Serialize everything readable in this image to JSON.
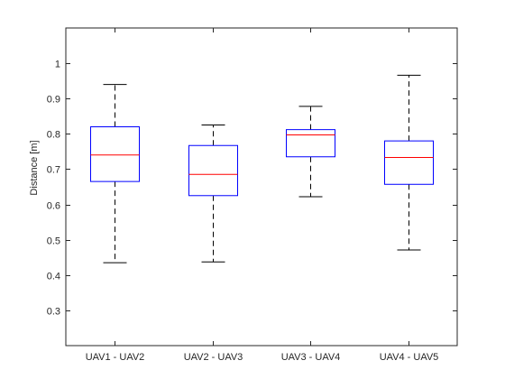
{
  "chart_data": {
    "type": "box",
    "title": "",
    "xlabel": "",
    "ylabel": "Distance [m]",
    "ylim": [
      0.2,
      1.1
    ],
    "yticks": [
      0.3,
      0.4,
      0.5,
      0.6,
      0.7,
      0.8,
      0.9,
      1
    ],
    "ytick_labels": [
      "0.3",
      "0.4",
      "0.5",
      "0.6",
      "0.7",
      "0.8",
      "0.9",
      "1"
    ],
    "grid": false,
    "categories": [
      "UAV1 - UAV2",
      "UAV2 - UAV3",
      "UAV3 - UAV4",
      "UAV4 - UAV5"
    ],
    "boxes": [
      {
        "whisker_low": 0.435,
        "q1": 0.665,
        "median": 0.74,
        "q3": 0.82,
        "whisker_high": 0.94
      },
      {
        "whisker_low": 0.437,
        "q1": 0.625,
        "median": 0.685,
        "q3": 0.767,
        "whisker_high": 0.825
      },
      {
        "whisker_low": 0.622,
        "q1": 0.735,
        "median": 0.797,
        "q3": 0.812,
        "whisker_high": 0.878
      },
      {
        "whisker_low": 0.471,
        "q1": 0.657,
        "median": 0.733,
        "q3": 0.78,
        "whisker_high": 0.966
      }
    ],
    "colors": {
      "box": "#0000ff",
      "median": "#ff0000",
      "whisker": "#000000",
      "axis": "#262626"
    }
  }
}
